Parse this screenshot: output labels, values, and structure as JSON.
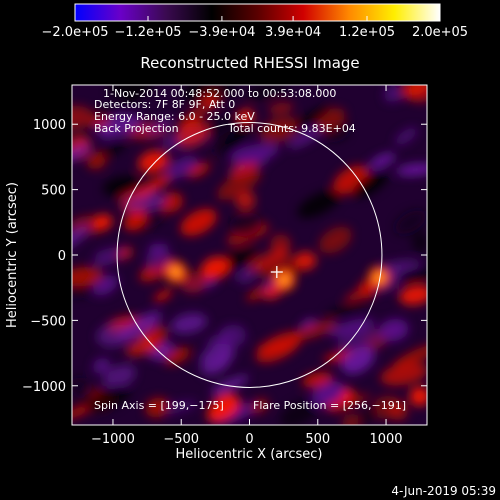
{
  "chart_data": {
    "type": "heatmap",
    "title": "Reconstructed RHESSI Image",
    "xlabel": "Heliocentric X (arcsec)",
    "ylabel": "Heliocentric Y (arcsec)",
    "xlim": [
      -1300,
      1300
    ],
    "ylim": [
      -1300,
      1300
    ],
    "x_ticks": [
      -1000,
      -500,
      0,
      500,
      1000
    ],
    "x_tick_labels": [
      "−1000",
      "−500",
      "0",
      "500",
      "1000"
    ],
    "y_ticks": [
      -1000,
      -500,
      0,
      500,
      1000
    ],
    "y_tick_labels": [
      "−1000",
      "−500",
      "0",
      "500",
      "1000"
    ],
    "colorbar": {
      "range": [
        -200000,
        200000
      ],
      "tick_values": [
        -200000,
        -120000,
        -39000,
        39000,
        120000,
        200000
      ],
      "tick_labels": [
        "−2.0e+05",
        "−1.2e+05",
        "−3.9e+04",
        "3.9e+04",
        "1.2e+05",
        "2.0e+05"
      ],
      "colors": [
        "#0000ff",
        "#6a00c8",
        "#3a0a50",
        "#000000",
        "#5a0000",
        "#d00000",
        "#ff8800",
        "#ffee00",
        "#ffffff"
      ]
    },
    "annotations": {
      "time_range": "1-Nov-2014 00:48:52.000 to 00:53:08.000",
      "detectors": "Detectors: 7F 8F 9F, Att 0",
      "energy_range": "Energy Range: 6.0 - 25.0 keV",
      "method": "Back Projection",
      "total_counts": "Total counts: 9.83E+04",
      "spin_axis": "Spin Axis = [199,−175]",
      "flare_position": "Flare Position = [256,−191]"
    },
    "solar_limb": {
      "center": [
        0,
        0
      ],
      "radius": 970
    },
    "flare_marker": [
      200,
      -130
    ],
    "bright_sources": [
      {
        "x": 256,
        "y": -191,
        "value": 150000
      },
      {
        "x": -540,
        "y": -130,
        "value": 110000
      },
      {
        "x": 950,
        "y": -170,
        "value": 100000
      }
    ],
    "grid": false
  },
  "footer": {
    "date": "4-Jun-2019 05:39"
  }
}
